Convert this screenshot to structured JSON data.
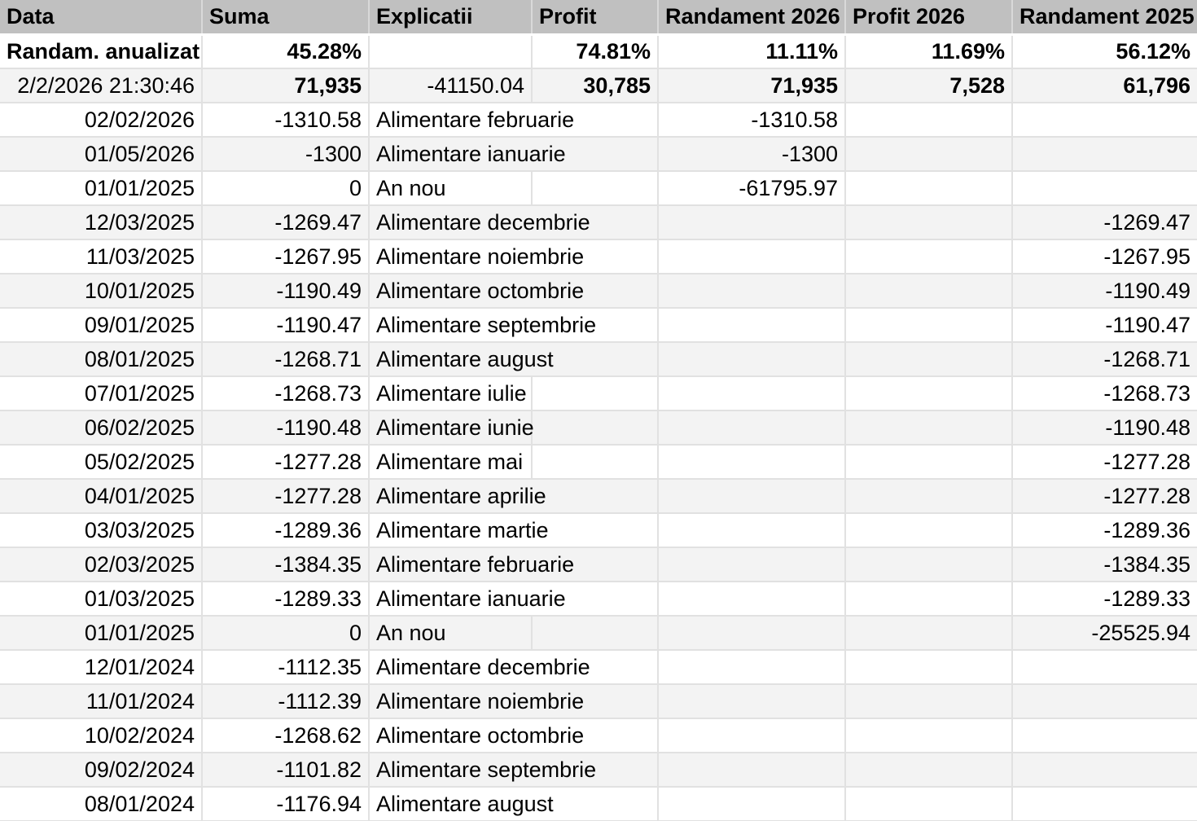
{
  "sheet": {
    "columns": [
      "Data",
      "Suma",
      "Explicatii",
      "Profit",
      "Randament 2026",
      "Profit 2026",
      "Randament 2025"
    ],
    "rows": [
      {
        "cells": [
          "Randam. anualizat",
          "45.28%",
          "",
          "74.81%",
          "11.11%",
          "11.69%",
          "56.12%"
        ],
        "bold": [
          0,
          1,
          2,
          3,
          4,
          5,
          6
        ]
      },
      {
        "cells": [
          "2/2/2026 21:30:46",
          "71,935",
          "-41150.04",
          "30,785",
          "71,935",
          "7,528",
          "61,796"
        ],
        "bold": [
          1,
          3,
          4,
          5,
          6
        ]
      },
      {
        "cells": [
          "02/02/2026",
          "-1310.58",
          "Alimentare februarie",
          "",
          "-1310.58",
          "",
          ""
        ],
        "bold": []
      },
      {
        "cells": [
          "01/05/2026",
          "-1300",
          "Alimentare ianuarie",
          "",
          "-1300",
          "",
          ""
        ],
        "bold": []
      },
      {
        "cells": [
          "01/01/2025",
          "0",
          "An nou",
          "",
          "-61795.97",
          "",
          ""
        ],
        "bold": []
      },
      {
        "cells": [
          "12/03/2025",
          "-1269.47",
          "Alimentare decembrie",
          "",
          "",
          "",
          "-1269.47"
        ],
        "bold": []
      },
      {
        "cells": [
          "11/03/2025",
          "-1267.95",
          "Alimentare noiembrie",
          "",
          "",
          "",
          "-1267.95"
        ],
        "bold": []
      },
      {
        "cells": [
          "10/01/2025",
          "-1190.49",
          "Alimentare octombrie",
          "",
          "",
          "",
          "-1190.49"
        ],
        "bold": []
      },
      {
        "cells": [
          "09/01/2025",
          "-1190.47",
          "Alimentare septembrie",
          "",
          "",
          "",
          "-1190.47"
        ],
        "bold": []
      },
      {
        "cells": [
          "08/01/2025",
          "-1268.71",
          "Alimentare august",
          "",
          "",
          "",
          "-1268.71"
        ],
        "bold": []
      },
      {
        "cells": [
          "07/01/2025",
          "-1268.73",
          "Alimentare iulie",
          "",
          "",
          "",
          "-1268.73"
        ],
        "bold": []
      },
      {
        "cells": [
          "06/02/2025",
          "-1190.48",
          "Alimentare iunie",
          "",
          "",
          "",
          "-1190.48"
        ],
        "bold": []
      },
      {
        "cells": [
          "05/02/2025",
          "-1277.28",
          "Alimentare mai",
          "",
          "",
          "",
          "-1277.28"
        ],
        "bold": []
      },
      {
        "cells": [
          "04/01/2025",
          "-1277.28",
          "Alimentare aprilie",
          "",
          "",
          "",
          "-1277.28"
        ],
        "bold": []
      },
      {
        "cells": [
          "03/03/2025",
          "-1289.36",
          "Alimentare martie",
          "",
          "",
          "",
          "-1289.36"
        ],
        "bold": []
      },
      {
        "cells": [
          "02/03/2025",
          "-1384.35",
          "Alimentare februarie",
          "",
          "",
          "",
          "-1384.35"
        ],
        "bold": []
      },
      {
        "cells": [
          "01/03/2025",
          "-1289.33",
          "Alimentare ianuarie",
          "",
          "",
          "",
          "-1289.33"
        ],
        "bold": []
      },
      {
        "cells": [
          "01/01/2025",
          "0",
          "An nou",
          "",
          "",
          "",
          "-25525.94"
        ],
        "bold": []
      },
      {
        "cells": [
          "12/01/2024",
          "-1112.35",
          "Alimentare decembrie",
          "",
          "",
          "",
          ""
        ],
        "bold": []
      },
      {
        "cells": [
          "11/01/2024",
          "-1112.39",
          "Alimentare noiembrie",
          "",
          "",
          "",
          ""
        ],
        "bold": []
      },
      {
        "cells": [
          "10/02/2024",
          "-1268.62",
          "Alimentare octombrie",
          "",
          "",
          "",
          ""
        ],
        "bold": []
      },
      {
        "cells": [
          "09/02/2024",
          "-1101.82",
          "Alimentare septembrie",
          "",
          "",
          "",
          ""
        ],
        "bold": []
      },
      {
        "cells": [
          "08/01/2024",
          "-1176.94",
          "Alimentare august",
          "",
          "",
          "",
          ""
        ],
        "bold": []
      }
    ],
    "colors": {
      "header_bg": "#c0c0c0",
      "header_gridline": "#d9d9d9",
      "header_bottom_border": "#ffffff",
      "row_bg": "#ffffff",
      "alt_row_bg": "#f3f3f3",
      "gridline": "#e1e1e1",
      "text": "#000000"
    }
  }
}
